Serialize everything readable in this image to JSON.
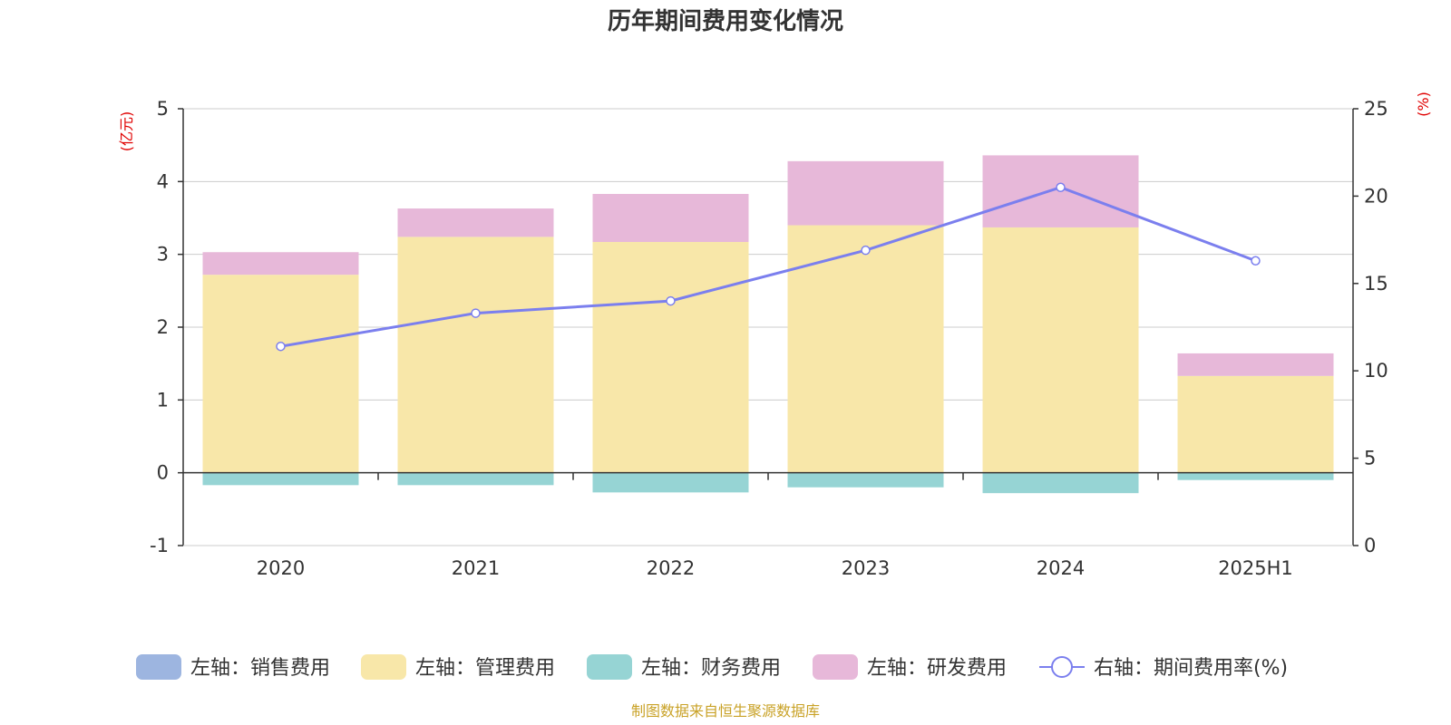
{
  "chart_data": {
    "type": "bar",
    "title": "历年期间费用变化情况",
    "left_unit": "(亿元)",
    "right_unit": "(%)",
    "categories": [
      "2020",
      "2021",
      "2022",
      "2023",
      "2024",
      "2025H1"
    ],
    "left_axis": {
      "min": -1,
      "max": 5,
      "ticks": [
        "-1",
        "0",
        "1",
        "2",
        "3",
        "4",
        "5"
      ]
    },
    "right_axis": {
      "min": 0,
      "max": 25,
      "ticks": [
        "0",
        "5",
        "10",
        "15",
        "20",
        "25"
      ]
    },
    "grid": true,
    "series": [
      {
        "name": "左轴：销售费用",
        "kind": "bar",
        "axis": "left",
        "color": "#9db5e0",
        "values": [
          0,
          0,
          0,
          0,
          0,
          0
        ]
      },
      {
        "name": "左轴：管理费用",
        "kind": "bar",
        "axis": "left",
        "color": "#f8e7a9",
        "values": [
          2.72,
          3.24,
          3.17,
          3.4,
          3.37,
          1.33
        ]
      },
      {
        "name": "左轴：财务费用",
        "kind": "bar",
        "axis": "left",
        "color": "#96d4d4",
        "values": [
          -0.17,
          -0.17,
          -0.27,
          -0.2,
          -0.28,
          -0.1
        ]
      },
      {
        "name": "左轴：研发费用",
        "kind": "bar",
        "axis": "left",
        "color": "#e7b8d9",
        "values": [
          0.31,
          0.39,
          0.66,
          0.88,
          0.99,
          0.31
        ]
      },
      {
        "name": "右轴：期间费用率(%)",
        "kind": "line",
        "axis": "right",
        "color": "#7b7fee",
        "values": [
          11.4,
          13.3,
          14.0,
          16.9,
          20.5,
          16.3
        ]
      }
    ],
    "legend_position": "bottom",
    "source": "制图数据来自恒生聚源数据库"
  }
}
